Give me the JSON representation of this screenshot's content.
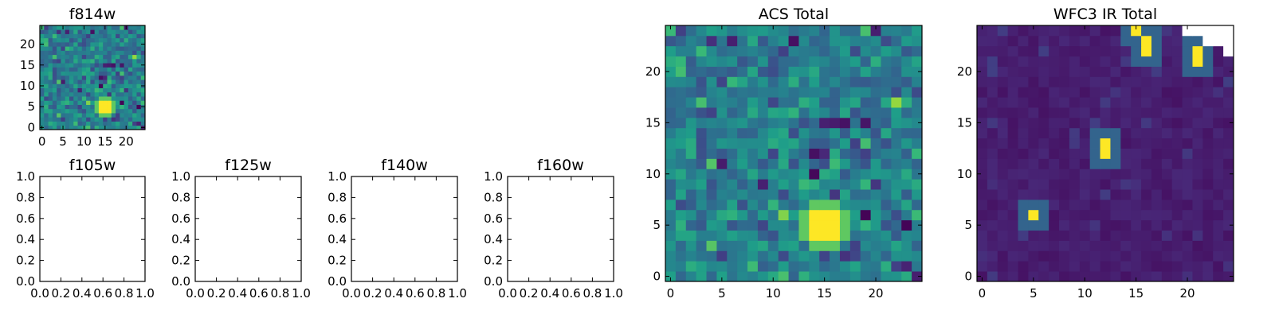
{
  "colors": {
    "colormap": "viridis",
    "axis": "#000000",
    "background": "#ffffff",
    "nan": "#ffffff"
  },
  "chart_data": [
    {
      "type": "heatmap",
      "title": "f814w",
      "xticks": [
        "0",
        "5",
        "10",
        "15",
        "20"
      ],
      "yticks": [
        "0",
        "5",
        "10",
        "15",
        "20"
      ],
      "xlim": [
        -0.5,
        24.5
      ],
      "ylim": [
        -0.5,
        24.5
      ],
      "shape": [
        25,
        25
      ],
      "image": "acs",
      "features": [
        {
          "label": "bright source",
          "x": 15,
          "y": 5,
          "radius": 1.5
        }
      ]
    },
    {
      "type": "heatmap",
      "title": "f105w",
      "xticks": [
        "0.0",
        "0.2",
        "0.4",
        "0.6",
        "0.8",
        "1.0"
      ],
      "yticks": [
        "0.0",
        "0.2",
        "0.4",
        "0.6",
        "0.8",
        "1.0"
      ],
      "xlim": [
        0,
        1
      ],
      "ylim": [
        0,
        1
      ],
      "empty": true
    },
    {
      "type": "heatmap",
      "title": "f125w",
      "xticks": [
        "0.0",
        "0.2",
        "0.4",
        "0.6",
        "0.8",
        "1.0"
      ],
      "yticks": [
        "0.0",
        "0.2",
        "0.4",
        "0.6",
        "0.8",
        "1.0"
      ],
      "xlim": [
        0,
        1
      ],
      "ylim": [
        0,
        1
      ],
      "empty": true
    },
    {
      "type": "heatmap",
      "title": "f140w",
      "xticks": [
        "0.0",
        "0.2",
        "0.4",
        "0.6",
        "0.8",
        "1.0"
      ],
      "yticks": [
        "0.0",
        "0.2",
        "0.4",
        "0.6",
        "0.8",
        "1.0"
      ],
      "xlim": [
        0,
        1
      ],
      "ylim": [
        0,
        1
      ],
      "empty": true
    },
    {
      "type": "heatmap",
      "title": "f160w",
      "xticks": [
        "0.0",
        "0.2",
        "0.4",
        "0.6",
        "0.8",
        "1.0"
      ],
      "yticks": [
        "0.0",
        "0.2",
        "0.4",
        "0.6",
        "0.8",
        "1.0"
      ],
      "xlim": [
        0,
        1
      ],
      "ylim": [
        0,
        1
      ],
      "empty": true
    },
    {
      "type": "heatmap",
      "title": "ACS Total",
      "xticks": [
        "0",
        "5",
        "10",
        "15",
        "20"
      ],
      "yticks": [
        "0",
        "5",
        "10",
        "15",
        "20"
      ],
      "xlim": [
        -0.5,
        24.5
      ],
      "ylim": [
        -0.5,
        24.5
      ],
      "shape": [
        25,
        25
      ],
      "image": "acs",
      "features": [
        {
          "label": "bright source",
          "x": 15,
          "y": 5,
          "radius": 1.5
        }
      ]
    },
    {
      "type": "heatmap",
      "title": "WFC3 IR Total",
      "xticks": [
        "0",
        "5",
        "10",
        "15",
        "20"
      ],
      "yticks": [
        "0",
        "5",
        "10",
        "15",
        "20"
      ],
      "xlim": [
        -0.5,
        24.5
      ],
      "ylim": [
        -0.5,
        24.5
      ],
      "shape": [
        25,
        25
      ],
      "image": "wfc3",
      "features": [
        {
          "label": "hot pixel",
          "x": 5,
          "y": 6
        },
        {
          "label": "hot pixel",
          "x": 12,
          "y": 12
        },
        {
          "label": "hot pixel",
          "x": 12,
          "y": 13
        },
        {
          "label": "hot pixel",
          "x": 16,
          "y": 23
        },
        {
          "label": "hot pixel",
          "x": 16,
          "y": 22
        },
        {
          "label": "hot pixel",
          "x": 15,
          "y": 24
        },
        {
          "label": "hot pixel",
          "x": 21,
          "y": 22
        },
        {
          "label": "hot pixel",
          "x": 21,
          "y": 21
        }
      ],
      "masked": [
        {
          "x0": 20,
          "x1": 24,
          "y0": 24,
          "y1": 24
        },
        {
          "x0": 22,
          "x1": 23,
          "y0": 23,
          "y1": 23
        },
        {
          "x0": 24,
          "x1": 24,
          "y0": 22,
          "y1": 23
        }
      ]
    }
  ]
}
